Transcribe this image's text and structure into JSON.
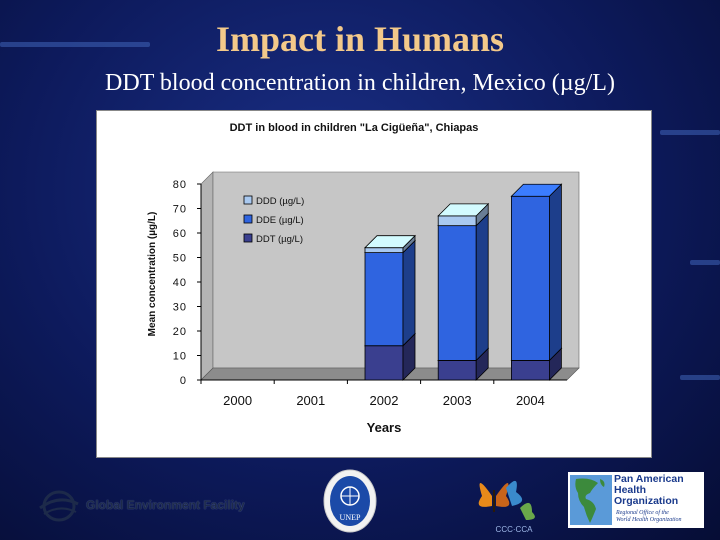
{
  "slide": {
    "title": "Impact in Humans",
    "subtitle": "DDT blood concentration in children, Mexico (µg/L)"
  },
  "chart_data": {
    "type": "bar",
    "stacked": true,
    "three_d": true,
    "title": "DDT in blood in children \"La Cigüeña\", Chiapas",
    "xlabel": "Years",
    "ylabel": "Mean concentration (µg/L)",
    "ylim": [
      0,
      80
    ],
    "yticks": [
      0,
      10,
      20,
      30,
      40,
      50,
      60,
      70,
      80
    ],
    "grid": false,
    "legend_position": "top-left",
    "categories": [
      "2000",
      "2001",
      "2002",
      "2003",
      "2004"
    ],
    "series": [
      {
        "name": "DDT (µg/L)",
        "color": "#3a3f8f",
        "values": [
          0,
          0,
          14,
          8,
          8
        ]
      },
      {
        "name": "DDE (µg/L)",
        "color": "#2f64e0",
        "values": [
          0,
          0,
          38,
          55,
          67
        ]
      },
      {
        "name": "DDD (µg/L)",
        "color": "#a9c9f0",
        "values": [
          0,
          0,
          2,
          4,
          0
        ]
      }
    ],
    "legend_order": [
      2,
      1,
      0
    ]
  },
  "footer": {
    "gef_label": "Global Environment Facility",
    "unep_label": "UNEP",
    "ccc_label": "CCC·CCA",
    "paho_name": "Pan American Health Organization",
    "paho_sub_1": "Regional Office of the",
    "paho_sub_2": "World Health Organization"
  },
  "colors": {
    "title": "#f3c98a",
    "background": "#0d1a5c",
    "plot_wall": "#c6c6c6"
  }
}
